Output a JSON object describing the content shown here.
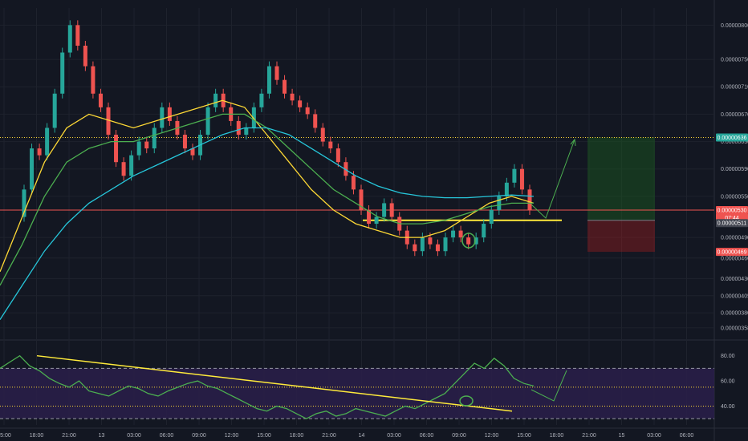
{
  "chart_data": [
    {
      "type": "line",
      "panel": "price",
      "title": "",
      "xlabel": "",
      "ylabel": "",
      "x_ticks": [
        "15:00",
        "18:00",
        "21:00",
        "13",
        "03:00",
        "06:00",
        "09:00",
        "12:00",
        "15:00",
        "18:00",
        "21:00",
        "14",
        "03:00",
        "06:00",
        "09:00",
        "12:00",
        "15:00",
        "18:00",
        "21:00",
        "15",
        "03:00",
        "06:00"
      ],
      "y_ticks": [
        "0.00000800",
        "0.00000750",
        "0.00000710",
        "0.00000670",
        "0.00000630",
        "0.00000590",
        "0.00000550",
        "0.00000490",
        "0.00000460",
        "0.00000430",
        "0.00000405",
        "0.00000380",
        "0.00000358"
      ],
      "ylim": [
        3.45e-06,
        8.25e-06
      ],
      "price_badges": [
        {
          "label": "0.00000636",
          "value": 6.36e-06,
          "color": "#26a69a"
        },
        {
          "label": "0.00000530",
          "value": 5.3e-06,
          "color": "#ef5350"
        },
        {
          "label": "07:44",
          "value": 5.19e-06,
          "color": "#ef5350"
        },
        {
          "label": "0.00000511",
          "value": 5.11e-06,
          "color": "#434651"
        },
        {
          "label": "0.00000469",
          "value": 4.69e-06,
          "color": "#ef5350"
        }
      ],
      "levels": [
        {
          "name": "target",
          "value": 6.36e-06,
          "style": "dotted",
          "color": "#fdd835"
        },
        {
          "name": "current",
          "value": 5.3e-06,
          "style": "solid",
          "color": "#ef5350"
        },
        {
          "name": "support",
          "value": 5.15e-06,
          "style": "solid",
          "color": "#ffeb3b"
        }
      ],
      "candles": [
        [
          5.2e-06,
          5.6e-06
        ],
        [
          5.6e-06,
          6.2e-06
        ],
        [
          6.2e-06,
          6.1e-06
        ],
        [
          6.1e-06,
          6.5e-06
        ],
        [
          6.5e-06,
          7e-06
        ],
        [
          7e-06,
          7.6e-06
        ],
        [
          7.6e-06,
          8e-06
        ],
        [
          8e-06,
          7.7e-06
        ],
        [
          7.7e-06,
          7.4e-06
        ],
        [
          7.4e-06,
          7e-06
        ],
        [
          7e-06,
          6.8e-06
        ],
        [
          6.8e-06,
          6.4e-06
        ],
        [
          6.4e-06,
          6e-06
        ],
        [
          6e-06,
          5.8e-06
        ],
        [
          5.8e-06,
          6.1e-06
        ],
        [
          6.1e-06,
          6.3e-06
        ],
        [
          6.3e-06,
          6.2e-06
        ],
        [
          6.2e-06,
          6.5e-06
        ],
        [
          6.5e-06,
          6.8e-06
        ],
        [
          6.8e-06,
          6.6e-06
        ],
        [
          6.6e-06,
          6.4e-06
        ],
        [
          6.4e-06,
          6.2e-06
        ],
        [
          6.2e-06,
          6.1e-06
        ],
        [
          6.1e-06,
          6.4e-06
        ],
        [
          6.4e-06,
          6.8e-06
        ],
        [
          6.8e-06,
          7e-06
        ],
        [
          7e-06,
          6.8e-06
        ],
        [
          6.8e-06,
          6.6e-06
        ],
        [
          6.6e-06,
          6.4e-06
        ],
        [
          6.4e-06,
          6.5e-06
        ],
        [
          6.5e-06,
          6.8e-06
        ],
        [
          6.8e-06,
          7e-06
        ],
        [
          7e-06,
          7.4e-06
        ],
        [
          7.4e-06,
          7.2e-06
        ],
        [
          7.2e-06,
          7e-06
        ],
        [
          7e-06,
          6.9e-06
        ],
        [
          6.9e-06,
          6.8e-06
        ],
        [
          6.8e-06,
          6.7e-06
        ],
        [
          6.7e-06,
          6.5e-06
        ],
        [
          6.5e-06,
          6.3e-06
        ],
        [
          6.3e-06,
          6.2e-06
        ],
        [
          6.2e-06,
          6e-06
        ],
        [
          6e-06,
          5.8e-06
        ],
        [
          5.8e-06,
          5.6e-06
        ],
        [
          5.6e-06,
          5.3e-06
        ],
        [
          5.3e-06,
          5.1e-06
        ],
        [
          5.1e-06,
          5.2e-06
        ],
        [
          5.2e-06,
          5.4e-06
        ],
        [
          5.4e-06,
          5.2e-06
        ],
        [
          5.2e-06,
          5e-06
        ],
        [
          5e-06,
          4.8e-06
        ],
        [
          4.8e-06,
          4.7e-06
        ],
        [
          4.7e-06,
          4.9e-06
        ],
        [
          4.9e-06,
          4.8e-06
        ],
        [
          4.8e-06,
          4.7e-06
        ],
        [
          4.7e-06,
          4.9e-06
        ],
        [
          4.9e-06,
          5e-06
        ],
        [
          5e-06,
          4.9e-06
        ],
        [
          4.9e-06,
          4.8e-06
        ],
        [
          4.8e-06,
          4.9e-06
        ],
        [
          4.9e-06,
          5.1e-06
        ],
        [
          5.1e-06,
          5.3e-06
        ],
        [
          5.3e-06,
          5.5e-06
        ],
        [
          5.5e-06,
          5.7e-06
        ],
        [
          5.7e-06,
          5.9e-06
        ],
        [
          5.9e-06,
          5.6e-06
        ],
        [
          5.6e-06,
          5.3e-06
        ]
      ],
      "series": [
        {
          "color": "#fdd835",
          "values": [
            4.4e-06,
            5.2e-06,
            6e-06,
            6.5e-06,
            6.7e-06,
            6.6e-06,
            6.5e-06,
            6.6e-06,
            6.7e-06,
            6.8e-06,
            6.9e-06,
            6.8e-06,
            6.4e-06,
            6e-06,
            5.6e-06,
            5.3e-06,
            5.1e-06,
            5e-06,
            4.9e-06,
            4.9e-06,
            5e-06,
            5.2e-06,
            5.4e-06,
            5.5e-06,
            5.4e-06
          ]
        },
        {
          "color": "#4caf50",
          "values": [
            4.2e-06,
            4.8e-06,
            5.5e-06,
            6e-06,
            6.2e-06,
            6.3e-06,
            6.3e-06,
            6.4e-06,
            6.5e-06,
            6.6e-06,
            6.7e-06,
            6.7e-06,
            6.5e-06,
            6.2e-06,
            5.9e-06,
            5.6e-06,
            5.4e-06,
            5.2e-06,
            5.1e-06,
            5.1e-06,
            5.15e-06,
            5.25e-06,
            5.35e-06,
            5.4e-06,
            5.4e-06
          ]
        },
        {
          "color": "#26c6da",
          "values": [
            3.7e-06,
            4.2e-06,
            4.7e-06,
            5.1e-06,
            5.4e-06,
            5.6e-06,
            5.8e-06,
            5.95e-06,
            6.1e-06,
            6.25e-06,
            6.4e-06,
            6.5e-06,
            6.5e-06,
            6.4e-06,
            6.2e-06,
            6e-06,
            5.8e-06,
            5.65e-06,
            5.55e-06,
            5.5e-06,
            5.48e-06,
            5.48e-06,
            5.5e-06,
            5.52e-06,
            5.5e-06
          ]
        }
      ],
      "position": {
        "entry": 5.15e-06,
        "target": 6.36e-06,
        "stop": 4.69e-06
      }
    },
    {
      "type": "line",
      "panel": "oscillator",
      "title": "",
      "xlabel": "",
      "ylabel": "",
      "y_ticks": [
        "80.00",
        "60.00",
        "40.00"
      ],
      "ylim": [
        25,
        90
      ],
      "band": [
        30,
        70
      ],
      "levels": [
        55,
        40
      ],
      "series": [
        {
          "color": "#4caf50",
          "values": [
            70,
            75,
            80,
            72,
            68,
            62,
            58,
            55,
            60,
            52,
            50,
            48,
            52,
            56,
            54,
            50,
            48,
            52,
            55,
            58,
            60,
            56,
            54,
            50,
            46,
            42,
            38,
            36,
            40,
            38,
            34,
            30,
            34,
            36,
            32,
            34,
            38,
            36,
            34,
            32,
            36,
            40,
            38,
            42,
            46,
            50,
            58,
            66,
            74,
            70,
            78,
            72,
            62,
            58,
            56
          ]
        }
      ],
      "trendline": {
        "from": 80,
        "to": 36
      }
    }
  ]
}
